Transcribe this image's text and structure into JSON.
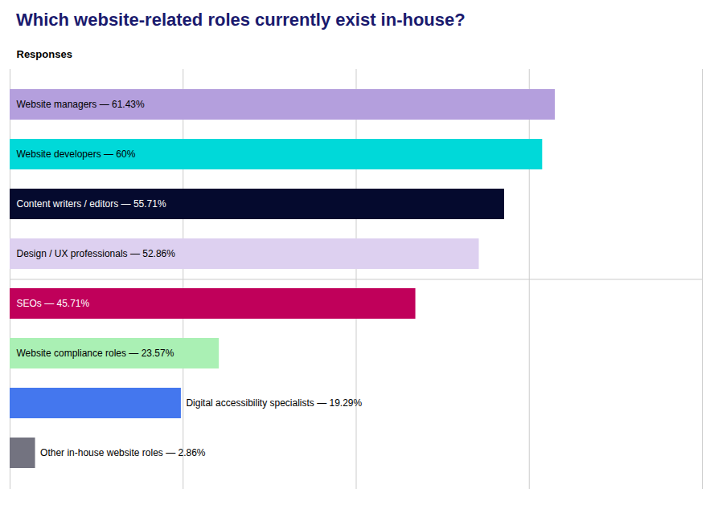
{
  "chart_data": {
    "type": "bar",
    "orientation": "horizontal",
    "title": "Which website-related roles currently exist in-house?",
    "ylabel": "Responses",
    "categories": [
      "Website managers — 61.43%",
      "Website developers — 60%",
      "Content writers / editors — 55.71%",
      "Design / UX professionals — 52.86%",
      "SEOs — 45.71%",
      "Website compliance roles — 23.57%",
      "Digital accessibility specialists — 19.29%",
      "Other in-house website roles — 2.86%"
    ],
    "values": [
      61.43,
      60.0,
      55.71,
      52.86,
      45.71,
      23.57,
      19.29,
      2.86
    ],
    "colors": [
      "#b49fdd",
      "#00d9d9",
      "#050a2e",
      "#ddd0f0",
      "#c0005a",
      "#aaf0b4",
      "#4477ee",
      "#737380"
    ],
    "xlim": [
      0,
      78
    ],
    "xticks": [
      0,
      19.5,
      39,
      58.5,
      78
    ],
    "grid": true,
    "tick_labels": false
  }
}
